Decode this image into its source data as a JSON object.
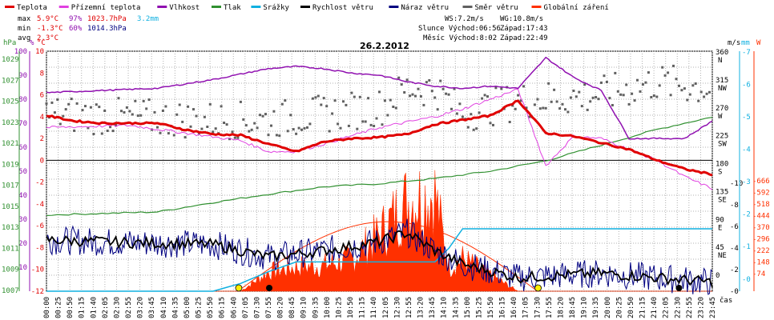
{
  "chart_data": {
    "type": "line",
    "title": "26.2.2012",
    "x_axis_label": "čas",
    "x_ticks": [
      "00:00",
      "00:25",
      "00:50",
      "01:15",
      "01:40",
      "02:05",
      "02:30",
      "02:55",
      "03:20",
      "03:45",
      "04:10",
      "04:35",
      "05:00",
      "05:25",
      "05:50",
      "06:15",
      "06:40",
      "07:05",
      "07:30",
      "07:55",
      "08:20",
      "08:45",
      "09:10",
      "09:35",
      "10:00",
      "10:25",
      "10:50",
      "11:15",
      "11:40",
      "12:05",
      "12:30",
      "12:55",
      "13:20",
      "13:45",
      "14:10",
      "14:35",
      "15:00",
      "15:25",
      "15:50",
      "16:15",
      "16:40",
      "17:05",
      "17:30",
      "17:55",
      "18:20",
      "18:45",
      "19:10",
      "19:35",
      "20:00",
      "20:25",
      "20:50",
      "21:15",
      "21:40",
      "22:05",
      "22:30",
      "22:55",
      "23:20",
      "23:45"
    ],
    "legend": [
      {
        "name": "Teplota",
        "color": "#e00000"
      },
      {
        "name": "Přízemní teplota",
        "color": "#e040e0"
      },
      {
        "name": "Vlhkost",
        "color": "#9010b0"
      },
      {
        "name": "Tlak",
        "color": "#309030"
      },
      {
        "name": "Srážky",
        "color": "#10b0e0"
      },
      {
        "name": "Rychlost větru",
        "color": "#000000"
      },
      {
        "name": "Náraz větru",
        "color": "#000080"
      },
      {
        "name": "Směr větru",
        "color": "#606060"
      },
      {
        "name": "Globální záření",
        "color": "#ff3000"
      }
    ],
    "stats": {
      "max": {
        "label": "max",
        "temp": "5.9°C",
        "hum": "97%",
        "press": "1023.7hPa",
        "rain": "3.2mm"
      },
      "min": {
        "label": "min",
        "temp": "-1.3°C",
        "hum": "60%",
        "press": "1014.3hPa"
      },
      "avg": {
        "label": "avg",
        "temp": "2.3°C"
      }
    },
    "info": {
      "ws": "WS:7.2m/s",
      "wg": "WG:10.8m/s",
      "sun_rise": "Slunce Východ:06:56",
      "sun_set": "Západ:17:43",
      "moon_rise": "Měsíc Východ:8:02",
      "moon_set": "Západ:22:49"
    },
    "axes": {
      "hpa": {
        "label": "hPa",
        "color": "#309030",
        "ticks": [
          "1029",
          "1027",
          "1025",
          "1023",
          "1021",
          "1019",
          "1017",
          "1015",
          "1013",
          "1011",
          "1009",
          "1007"
        ]
      },
      "pct": {
        "label": "%",
        "color": "#9010b0",
        "ticks": [
          "100",
          "90",
          "80",
          "70",
          "60",
          "50",
          "40",
          "30",
          "20",
          "10"
        ]
      },
      "degc": {
        "label": "°C",
        "color": "#e00000",
        "ticks": [
          "10",
          "8",
          "6",
          "4",
          "2",
          "0",
          "-2",
          "-4",
          "-6",
          "-8",
          "-10",
          "-12"
        ]
      },
      "dir": {
        "ticks": [
          "360\nN",
          "315\nNW",
          "270\nW",
          "225\nSW",
          "180\nS",
          "135\nSE",
          "90\nE",
          "45\nNE",
          "0"
        ]
      },
      "ms": {
        "label": "m/s",
        "ticks": [
          "-10",
          "-8",
          "-6",
          "-4",
          "-2",
          "-0"
        ]
      },
      "mm": {
        "label": "mm",
        "color": "#10b0e0",
        "ticks": [
          "-7",
          "-6",
          "-5",
          "-4",
          "-3",
          "-2",
          "-1",
          "-0"
        ]
      },
      "wm2": {
        "label": "W",
        "color": "#ff3000",
        "ticks": [
          "-666",
          "-592",
          "-518",
          "-444",
          "-370",
          "-296",
          "-222",
          "-148",
          "-74"
        ]
      }
    },
    "series_keypoints": {
      "temperature_c": [
        [
          0,
          4.1
        ],
        [
          1,
          3.6
        ],
        [
          2,
          3.4
        ],
        [
          4,
          3.4
        ],
        [
          5,
          2.8
        ],
        [
          6,
          2.4
        ],
        [
          7,
          2.3
        ],
        [
          8,
          1.5
        ],
        [
          9,
          0.8
        ],
        [
          10,
          1.7
        ],
        [
          11,
          2.0
        ],
        [
          12,
          2.1
        ],
        [
          13,
          2.4
        ],
        [
          14,
          3.3
        ],
        [
          15,
          3.7
        ],
        [
          16,
          4.1
        ],
        [
          17,
          5.5
        ],
        [
          18,
          2.5
        ],
        [
          19,
          2.2
        ],
        [
          20,
          1.6
        ],
        [
          21,
          1.0
        ],
        [
          22,
          0.0
        ],
        [
          23,
          -0.8
        ],
        [
          24,
          -1.3
        ]
      ],
      "ground_temp_c": [
        [
          0,
          3.0
        ],
        [
          3,
          3.2
        ],
        [
          5,
          2.5
        ],
        [
          7,
          1.8
        ],
        [
          8,
          0.8
        ],
        [
          9,
          0.8
        ],
        [
          10,
          1.5
        ],
        [
          12,
          3.0
        ],
        [
          14,
          4.0
        ],
        [
          15,
          4.7
        ],
        [
          17,
          6.5
        ],
        [
          18,
          -0.5
        ],
        [
          19,
          2.2
        ],
        [
          20,
          2.0
        ],
        [
          22,
          0.0
        ],
        [
          23,
          -1.5
        ],
        [
          24,
          -2.6
        ]
      ],
      "humidity_pct": [
        [
          0,
          81
        ],
        [
          2,
          82
        ],
        [
          4,
          83
        ],
        [
          6,
          87
        ],
        [
          8,
          92
        ],
        [
          9,
          93
        ],
        [
          10,
          92
        ],
        [
          11,
          90
        ],
        [
          12,
          89
        ],
        [
          13,
          86
        ],
        [
          14,
          84
        ],
        [
          15,
          83
        ],
        [
          16,
          84
        ],
        [
          17,
          83
        ],
        [
          18,
          97
        ],
        [
          19,
          88
        ],
        [
          20,
          82
        ],
        [
          21,
          60
        ],
        [
          22,
          60
        ],
        [
          23,
          60
        ],
        [
          24,
          68
        ]
      ],
      "pressure_hpa": [
        [
          0,
          1014.3
        ],
        [
          4,
          1014.6
        ],
        [
          6,
          1015.5
        ],
        [
          8,
          1016.3
        ],
        [
          10,
          1017.0
        ],
        [
          12,
          1017.3
        ],
        [
          14,
          1017.8
        ],
        [
          16,
          1018.5
        ],
        [
          18,
          1019.5
        ],
        [
          20,
          1021.0
        ],
        [
          22,
          1022.5
        ],
        [
          24,
          1023.7
        ]
      ],
      "rain_mm": [
        [
          0,
          0
        ],
        [
          6,
          0
        ],
        [
          7,
          0.4
        ],
        [
          8,
          1.0
        ],
        [
          9,
          1.5
        ],
        [
          14,
          1.5
        ],
        [
          14.5,
          2.2
        ],
        [
          15,
          3.2
        ],
        [
          24,
          3.2
        ]
      ],
      "wind_speed_ms": [
        [
          0,
          -6.3
        ],
        [
          3,
          -6.6
        ],
        [
          6,
          -6.8
        ],
        [
          8,
          -8.2
        ],
        [
          10,
          -7.5
        ],
        [
          12,
          -6.5
        ],
        [
          13,
          -5.5
        ],
        [
          14,
          -7.5
        ],
        [
          15,
          -9.0
        ],
        [
          17,
          -10.5
        ],
        [
          20,
          -10.0
        ],
        [
          24,
          -11.0
        ]
      ],
      "wind_dir_deg": [
        [
          0,
          280
        ],
        [
          6,
          270
        ],
        [
          8,
          270
        ],
        [
          10,
          280
        ],
        [
          12,
          290
        ],
        [
          13,
          320
        ],
        [
          14,
          320
        ],
        [
          15,
          280
        ],
        [
          17,
          300
        ],
        [
          20,
          310
        ],
        [
          22,
          330
        ],
        [
          24,
          320
        ]
      ],
      "global_radiation_wm2": [
        [
          0,
          0
        ],
        [
          7,
          0
        ],
        [
          8,
          120
        ],
        [
          9,
          150
        ],
        [
          10,
          160
        ],
        [
          11,
          200
        ],
        [
          12,
          350
        ],
        [
          13,
          560
        ],
        [
          14,
          600
        ],
        [
          14.5,
          150
        ],
        [
          15,
          200
        ],
        [
          16,
          100
        ],
        [
          17,
          0
        ],
        [
          24,
          0
        ]
      ]
    }
  }
}
